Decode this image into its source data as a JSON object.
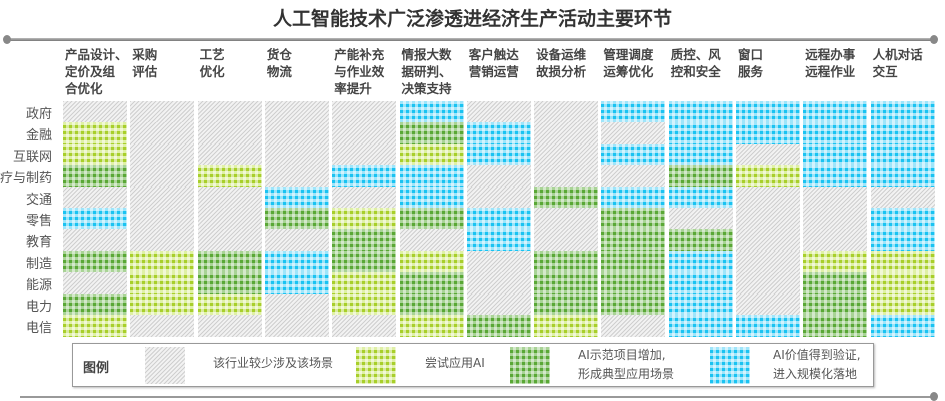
{
  "title": "人工智能技术广泛渗透进经济生产活动主要环节",
  "columns": [
    "产品设计、\n定价及组\n合优化",
    "采购\n评估",
    "工艺\n优化",
    "货仓\n物流",
    "产能补充\n与作业效\n率提升",
    "情报大数\n据研判、\n决策支持",
    "客户触达\n营销运营",
    "设备运维\n故损分析",
    "管理调度\n运筹优化",
    "质控、风\n控和安全",
    "窗口\n服务",
    "远程办事\n远程作业",
    "人机对话\n交互"
  ],
  "rows": [
    "政府",
    "金融",
    "互联网",
    "医疗与制药",
    "交通",
    "零售",
    "教育",
    "制造",
    "能源",
    "电力",
    "电信"
  ],
  "levels_by_column": [
    [
      0,
      1,
      1,
      2,
      0,
      3,
      0,
      2,
      0,
      2,
      1
    ],
    [
      0,
      0,
      0,
      0,
      0,
      0,
      0,
      1,
      1,
      1,
      0
    ],
    [
      0,
      0,
      0,
      1,
      0,
      0,
      0,
      2,
      2,
      1,
      0
    ],
    [
      0,
      0,
      0,
      0,
      3,
      2,
      0,
      3,
      3,
      0,
      0
    ],
    [
      0,
      0,
      0,
      3,
      0,
      1,
      2,
      2,
      1,
      1,
      0
    ],
    [
      3,
      2,
      1,
      3,
      3,
      2,
      0,
      1,
      2,
      2,
      1
    ],
    [
      0,
      3,
      3,
      0,
      0,
      3,
      3,
      0,
      0,
      0,
      2
    ],
    [
      0,
      0,
      0,
      0,
      2,
      0,
      0,
      2,
      2,
      2,
      1
    ],
    [
      3,
      0,
      3,
      0,
      3,
      2,
      2,
      2,
      2,
      2,
      0
    ],
    [
      3,
      3,
      3,
      2,
      3,
      0,
      2,
      3,
      3,
      3,
      3
    ],
    [
      3,
      3,
      0,
      1,
      0,
      0,
      0,
      0,
      0,
      0,
      3
    ],
    [
      3,
      3,
      3,
      3,
      0,
      0,
      0,
      1,
      2,
      2,
      2
    ],
    [
      3,
      3,
      3,
      3,
      0,
      3,
      3,
      1,
      1,
      1,
      3
    ]
  ],
  "legend": {
    "title": "图例",
    "items": [
      {
        "level": 0,
        "label": "该行业较少涉及该场景",
        "color": "#d0d0d0"
      },
      {
        "level": 1,
        "label": "尝试应用AI",
        "color": "#a8cf2a"
      },
      {
        "level": 2,
        "label": "AI示范项目增加,\n形成典型应用场景",
        "color": "#5aa836"
      },
      {
        "level": 3,
        "label": "AI价值得到验证,\n进入规模化落地",
        "color": "#1ac3f2"
      }
    ]
  }
}
